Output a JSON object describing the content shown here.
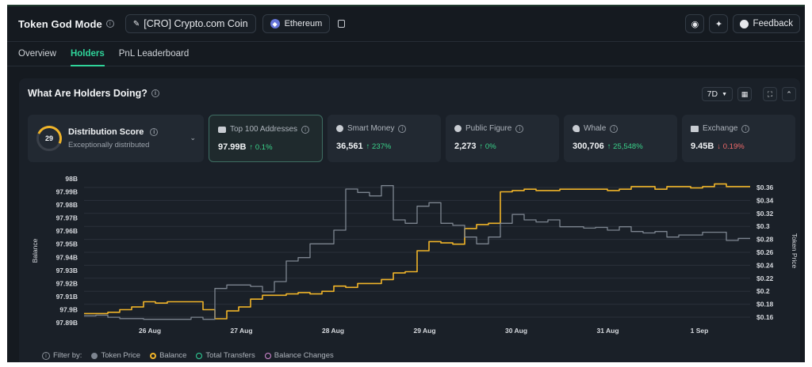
{
  "header": {
    "title": "Token God Mode",
    "token": "[CRO] Crypto.com Coin",
    "chain": "Ethereum",
    "feedback_label": "Feedback"
  },
  "tabs": [
    {
      "label": "Overview"
    },
    {
      "label": "Holders"
    },
    {
      "label": "PnL Leaderboard"
    }
  ],
  "panel": {
    "title": "What Are Holders Doing?",
    "timeframe": "7D"
  },
  "distribution": {
    "score": "29",
    "title": "Distribution Score",
    "subtitle": "Exceptionally distributed"
  },
  "metrics": [
    {
      "label": "Top 100 Addresses",
      "value": "97.99B",
      "change": "↑ 0.1%",
      "dir": "up"
    },
    {
      "label": "Smart Money",
      "value": "36,561",
      "change": "↑ 237%",
      "dir": "up"
    },
    {
      "label": "Public Figure",
      "value": "2,273",
      "change": "↑ 0%",
      "dir": "up"
    },
    {
      "label": "Whale",
      "value": "300,706",
      "change": "↑ 25,548%",
      "dir": "up"
    },
    {
      "label": "Exchange",
      "value": "9.45B",
      "change": "↓ 0.19%",
      "dir": "down"
    }
  ],
  "legend": {
    "prefix": "Filter by:",
    "items": [
      {
        "label": "Token Price",
        "color": "#7d8590",
        "filled": true
      },
      {
        "label": "Balance",
        "color": "#f0b429",
        "filled": false
      },
      {
        "label": "Total Transfers",
        "color": "#2fd49a",
        "filled": false
      },
      {
        "label": "Balance Changes",
        "color": "#d78ad6",
        "filled": false
      }
    ]
  },
  "chart_data": {
    "type": "line",
    "xlabel": "",
    "ylabel": "Balance",
    "y2label": "Token Price",
    "x_ticks": [
      "26 Aug",
      "27 Aug",
      "28 Aug",
      "29 Aug",
      "30 Aug",
      "31 Aug",
      "1 Sep"
    ],
    "y_ticks": [
      "98B",
      "97.99B",
      "97.98B",
      "97.97B",
      "97.96B",
      "97.95B",
      "97.94B",
      "97.93B",
      "97.92B",
      "97.91B",
      "97.9B",
      "97.89B"
    ],
    "y2_ticks": [
      "$0.36",
      "$0.34",
      "$0.32",
      "$0.3",
      "$0.28",
      "$0.26",
      "$0.24",
      "$0.22",
      "$0.2",
      "$0.18",
      "$0.16"
    ],
    "ylim": [
      97.89,
      98.0
    ],
    "y2lim": [
      0.155,
      0.365
    ],
    "x": [
      0,
      0.5,
      1,
      1.5,
      2,
      2.5,
      3,
      3.5,
      4,
      4.5,
      5,
      5.5,
      6,
      6.5,
      7,
      7.5,
      8,
      8.5,
      9,
      9.5,
      10,
      10.5,
      11,
      11.5,
      12,
      12.5,
      13,
      13.5,
      14,
      14.5,
      15,
      15.5,
      16,
      16.5,
      17,
      17.5,
      18,
      18.5,
      19,
      19.5,
      20,
      20.5,
      21,
      21.5,
      22,
      22.5,
      23,
      23.5,
      24,
      24.5,
      25,
      25.5,
      26,
      26.5,
      27,
      27.5,
      28
    ],
    "series": [
      {
        "name": "Balance",
        "axis": "left",
        "color": "#f0b429",
        "values": [
          97.897,
          97.897,
          97.898,
          97.9,
          97.902,
          97.906,
          97.905,
          97.906,
          97.906,
          97.906,
          97.9,
          97.893,
          97.899,
          97.902,
          97.908,
          97.911,
          97.911,
          97.912,
          97.913,
          97.912,
          97.914,
          97.918,
          97.917,
          97.92,
          97.92,
          97.923,
          97.928,
          97.929,
          97.945,
          97.952,
          97.951,
          97.95,
          97.962,
          97.965,
          97.966,
          97.99,
          97.991,
          97.992,
          97.991,
          97.991,
          97.992,
          97.992,
          97.992,
          97.992,
          97.991,
          97.992,
          97.994,
          97.994,
          97.992,
          97.994,
          97.994,
          97.993,
          97.994,
          97.996,
          97.994,
          97.994,
          97.994
        ]
      },
      {
        "name": "Token Price",
        "axis": "right",
        "color": "#7d8590",
        "values": [
          0.165,
          0.166,
          0.163,
          0.161,
          0.161,
          0.16,
          0.16,
          0.16,
          0.16,
          0.163,
          0.16,
          0.205,
          0.21,
          0.21,
          0.208,
          0.2,
          0.215,
          0.245,
          0.25,
          0.27,
          0.27,
          0.29,
          0.35,
          0.345,
          0.34,
          0.355,
          0.305,
          0.3,
          0.325,
          0.33,
          0.3,
          0.297,
          0.28,
          0.27,
          0.28,
          0.3,
          0.313,
          0.305,
          0.302,
          0.305,
          0.295,
          0.295,
          0.293,
          0.294,
          0.29,
          0.295,
          0.288,
          0.286,
          0.288,
          0.28,
          0.283,
          0.283,
          0.287,
          0.287,
          0.275,
          0.278,
          0.278
        ]
      }
    ]
  }
}
